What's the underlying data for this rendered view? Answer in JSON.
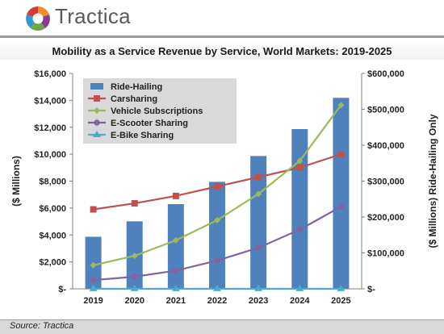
{
  "brand": {
    "name": "Tractica"
  },
  "source": "Source: Tractica",
  "colors": {
    "ride_hailing": "#4f81bd",
    "carsharing": "#c0504d",
    "vehicle_subscriptions": "#9bbb59",
    "e_scooter": "#8064a2",
    "e_bike": "#4bacc6"
  },
  "chart_data": {
    "type": "bar",
    "title": "Mobility as a Service Revenue by Service, World Markets: 2019-2025",
    "categories": [
      "2019",
      "2020",
      "2021",
      "2022",
      "2023",
      "2024",
      "2025"
    ],
    "ylabel": "($ Millions)",
    "y2label": "($ Millions) Ride-Hailing Only",
    "ylim": [
      0,
      16000
    ],
    "y2lim": [
      0,
      600000
    ],
    "yticks": [
      0,
      2000,
      4000,
      6000,
      8000,
      10000,
      12000,
      14000,
      16000
    ],
    "yticklabels": [
      "$-",
      "$2,000",
      "$4,000",
      "$6,000",
      "$8,000",
      "$10,000",
      "$12,000",
      "$14,000",
      "$16,000"
    ],
    "y2ticks": [
      0,
      100000,
      200000,
      300000,
      400000,
      500000,
      600000
    ],
    "y2ticklabels": [
      "$-",
      "$100,000",
      "$200,000",
      "$300,000",
      "$400,000",
      "$500,000",
      "$600,000"
    ],
    "legend_position": "top-left",
    "grid": false,
    "series": [
      {
        "name": "Ride-Hailing",
        "kind": "bar",
        "axis": "right",
        "marker": "bar",
        "values": [
          145000,
          188000,
          236000,
          298000,
          370000,
          445000,
          532000
        ]
      },
      {
        "name": "Carsharing",
        "kind": "line",
        "axis": "left",
        "marker": "square",
        "values": [
          5900,
          6350,
          6900,
          7600,
          8300,
          9000,
          10000
        ]
      },
      {
        "name": "Vehicle Subscriptions",
        "kind": "line",
        "axis": "left",
        "marker": "diamond",
        "values": [
          1750,
          2450,
          3600,
          5100,
          7050,
          9500,
          13650
        ]
      },
      {
        "name": "E-Scooter Sharing",
        "kind": "line",
        "axis": "left",
        "marker": "circle",
        "values": [
          650,
          900,
          1350,
          2100,
          3050,
          4400,
          6100
        ]
      },
      {
        "name": "E-Bike Sharing",
        "kind": "line",
        "axis": "left",
        "marker": "triangle",
        "values": [
          5,
          5,
          5,
          5,
          5,
          5,
          5
        ]
      }
    ]
  }
}
